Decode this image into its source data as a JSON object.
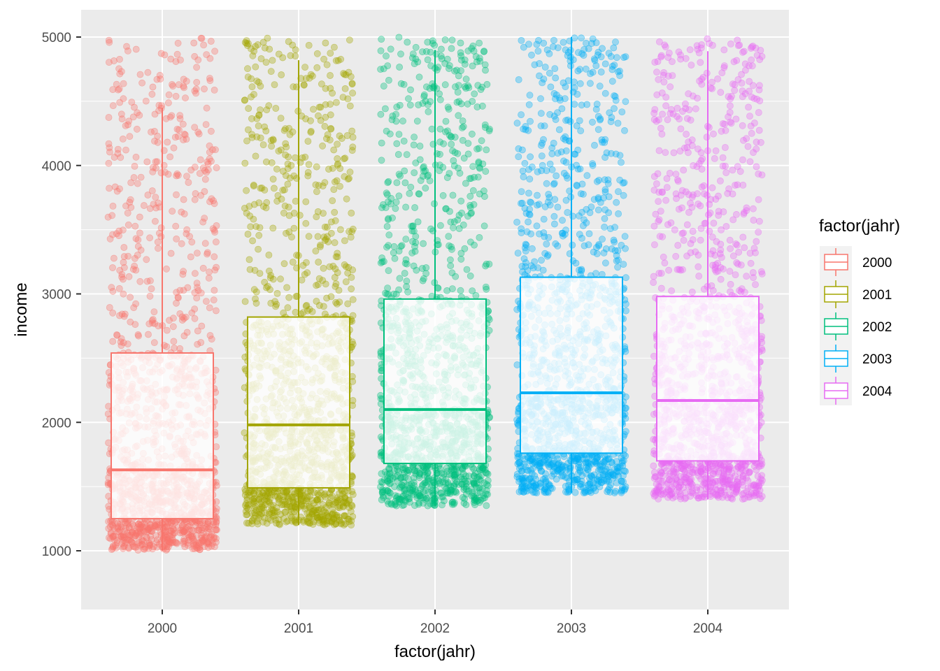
{
  "chart_data": {
    "type": "boxplot",
    "title": "",
    "xlabel": "factor(jahr)",
    "ylabel": "income",
    "categories": [
      "2000",
      "2001",
      "2002",
      "2003",
      "2004"
    ],
    "ylim": [
      540,
      5100
    ],
    "y_ticks": [
      1000,
      2000,
      3000,
      4000,
      5000
    ],
    "y_tick_labels": [
      "1000",
      "2000",
      "3000",
      "4000",
      "5000"
    ],
    "grid": true,
    "legend": {
      "title": "factor(jahr)",
      "position": "right",
      "entries": [
        "2000",
        "2001",
        "2002",
        "2003",
        "2004"
      ]
    },
    "series": [
      {
        "name": "2000",
        "color": "#F8766D",
        "min": 1000,
        "q1": 1250,
        "median": 1630,
        "q3": 2540,
        "whisker_high": 4450,
        "max": 5000
      },
      {
        "name": "2001",
        "color": "#A3A500",
        "min": 1200,
        "q1": 1490,
        "median": 1980,
        "q3": 2820,
        "whisker_high": 4820,
        "max": 5000
      },
      {
        "name": "2002",
        "color": "#00BF7D",
        "min": 1350,
        "q1": 1680,
        "median": 2100,
        "q3": 2960,
        "whisker_high": 4900,
        "max": 5000
      },
      {
        "name": "2003",
        "color": "#00B0F6",
        "min": 1450,
        "q1": 1760,
        "median": 2230,
        "q3": 3130,
        "whisker_high": 5000,
        "max": 5000
      },
      {
        "name": "2004",
        "color": "#E76BF3",
        "min": 1400,
        "q1": 1700,
        "median": 2170,
        "q3": 2980,
        "whisker_high": 4890,
        "max": 5000
      }
    ]
  }
}
